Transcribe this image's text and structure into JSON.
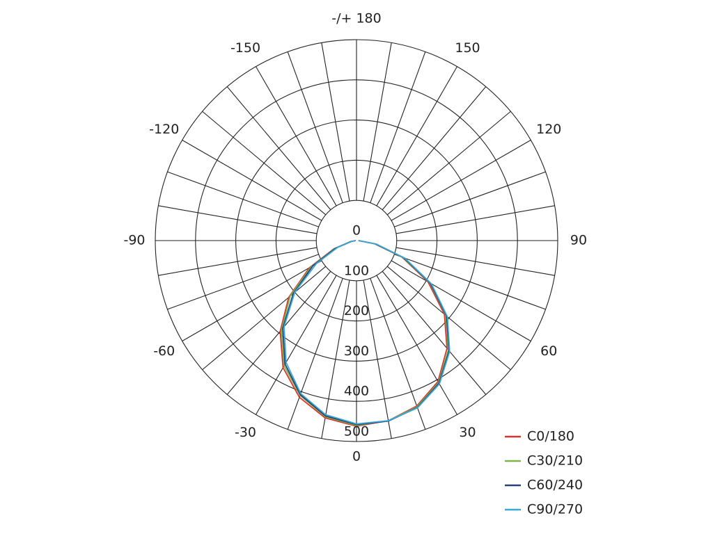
{
  "chart_data": {
    "type": "polar",
    "rlim": [
      0,
      500
    ],
    "rticks": [
      0,
      100,
      200,
      300,
      400,
      500
    ],
    "angle_ticks": [
      {
        "value": 180,
        "label": "-/+ 180"
      },
      -150,
      150,
      -120,
      120,
      -90,
      90,
      -60,
      60,
      -30,
      30,
      0
    ],
    "x": [
      -90,
      -80,
      -70,
      -60,
      -50,
      -40,
      -30,
      -20,
      -10,
      0,
      10,
      20,
      30,
      40,
      50,
      60,
      70,
      80,
      90
    ],
    "series": [
      {
        "name": "C0/180",
        "color": "#d9342b",
        "values": [
          2,
          15,
          60,
          135,
          220,
          295,
          365,
          415,
          448,
          462,
          455,
          438,
          405,
          350,
          285,
          205,
          120,
          45,
          5
        ]
      },
      {
        "name": "C30/210",
        "color": "#7ab648",
        "values": [
          2,
          14,
          58,
          130,
          215,
          290,
          360,
          410,
          445,
          460,
          455,
          440,
          408,
          355,
          290,
          210,
          122,
          46,
          5
        ]
      },
      {
        "name": "C60/240",
        "color": "#2b3f7a",
        "values": [
          2,
          13,
          55,
          125,
          205,
          285,
          355,
          408,
          443,
          458,
          456,
          442,
          410,
          358,
          292,
          212,
          125,
          48,
          5
        ]
      },
      {
        "name": "C90/270",
        "color": "#3aa8d8",
        "values": [
          2,
          12,
          50,
          115,
          200,
          280,
          350,
          405,
          440,
          456,
          455,
          443,
          412,
          360,
          295,
          215,
          128,
          50,
          5
        ]
      }
    ]
  }
}
